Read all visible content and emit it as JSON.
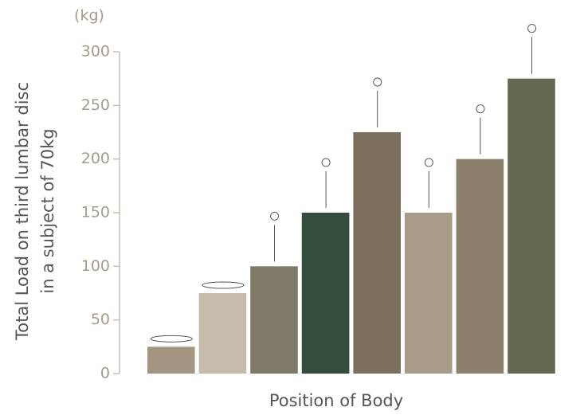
{
  "chart_data": {
    "type": "bar",
    "unit_label": "(kg)",
    "y_label_lines": [
      "Total Load on third lumbar disc",
      "in a subject of 70kg"
    ],
    "x_label": "Position of Body",
    "categories": [
      null,
      null,
      null,
      null,
      null,
      null,
      null,
      null
    ],
    "values": [
      25,
      75,
      100,
      150,
      225,
      150,
      200,
      275
    ],
    "colors": [
      "#a39580",
      "#c5bcac",
      "#7f7b68",
      "#344d3c",
      "#7b6f5d",
      "#a89c88",
      "#8a806c",
      "#646850"
    ],
    "ylim": [
      0,
      300
    ],
    "yticks": [
      0,
      50,
      100,
      150,
      200,
      250,
      300
    ]
  }
}
